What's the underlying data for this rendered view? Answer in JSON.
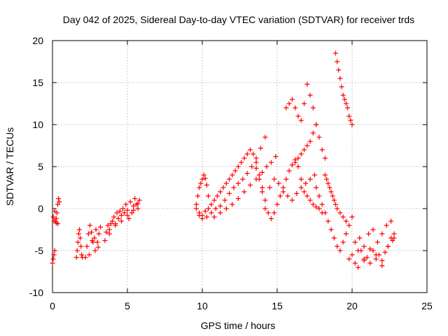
{
  "chart_data": {
    "type": "scatter",
    "title": "Day 042 of 2025, Sidereal Day-to-day VTEC variation (SDTVAR) for receiver trds",
    "xlabel": "GPS time / hours",
    "ylabel": "SDTVAR / TECUs",
    "xlim": [
      0,
      25
    ],
    "ylim": [
      -10,
      20
    ],
    "xticks": [
      0,
      5,
      10,
      15,
      20,
      25
    ],
    "yticks": [
      -10,
      -5,
      0,
      5,
      10,
      15,
      20
    ],
    "grid": true,
    "marker": "plus",
    "color": "#ff0000",
    "series": [
      {
        "name": "SDTVAR",
        "x": [
          0.0,
          0.05,
          0.1,
          0.15,
          0.2,
          0.25,
          0.3,
          0.35,
          0.4,
          0.45,
          0.05,
          0.1,
          0.15,
          0.25,
          0.35,
          1.6,
          1.65,
          1.7,
          1.75,
          1.8,
          1.85,
          1.9,
          1.95,
          2.0,
          2.2,
          2.3,
          2.4,
          2.5,
          2.6,
          2.7,
          2.8,
          2.9,
          3.0,
          3.1,
          3.2,
          2.45,
          2.65,
          2.85,
          3.05,
          3.5,
          3.6,
          3.7,
          3.8,
          3.9,
          4.0,
          4.1,
          4.2,
          4.3,
          4.4,
          4.5,
          4.6,
          4.7,
          4.8,
          4.9,
          5.0,
          5.1,
          5.2,
          5.3,
          5.4,
          5.5,
          5.6,
          5.7,
          5.8,
          3.8,
          4.2,
          4.6,
          5.0,
          5.4,
          5.7,
          9.6,
          9.7,
          9.8,
          9.9,
          10.0,
          10.1,
          10.2,
          10.3,
          10.4,
          9.6,
          9.8,
          10.0,
          10.2,
          10.4,
          10.6,
          10.8,
          11.0,
          11.2,
          11.4,
          11.6,
          11.8,
          12.0,
          12.2,
          12.4,
          12.6,
          12.8,
          13.0,
          13.2,
          13.4,
          13.6,
          13.8,
          14.0,
          14.2,
          9.8,
          10.0,
          10.3,
          10.6,
          10.9,
          11.2,
          11.5,
          11.8,
          12.1,
          12.4,
          12.7,
          13.0,
          13.3,
          13.6,
          13.9,
          14.2,
          10.8,
          11.2,
          11.6,
          12.0,
          12.4,
          12.8,
          13.2,
          13.6,
          14.0,
          14.3,
          14.6,
          14.9,
          13.6,
          13.8,
          14.0,
          14.2,
          14.4,
          14.6,
          14.8,
          15.0,
          15.2,
          15.4,
          15.6,
          15.8,
          16.0,
          16.2,
          16.4,
          16.6,
          16.8,
          17.0,
          17.2,
          17.4,
          17.6,
          17.8,
          18.0,
          14.5,
          14.8,
          15.1,
          15.4,
          15.7,
          16.0,
          16.3,
          16.6,
          16.9,
          17.2,
          17.5,
          15.6,
          15.8,
          16.0,
          16.2,
          16.4,
          16.6,
          16.8,
          17.0,
          17.2,
          17.4,
          17.6,
          17.8,
          18.0,
          18.2,
          16.2,
          16.4,
          16.6,
          16.8,
          17.0,
          17.2,
          17.4,
          17.6,
          18.2,
          18.3,
          18.4,
          18.5,
          18.6,
          18.7,
          18.8,
          18.9,
          19.0,
          19.2,
          19.4,
          19.6,
          18.9,
          19.0,
          19.1,
          19.2,
          19.3,
          19.4,
          19.5,
          19.6,
          19.7,
          19.8,
          19.9,
          20.0,
          17.6,
          17.8,
          18.0,
          18.2,
          18.4,
          18.6,
          18.8,
          19.0,
          19.2,
          19.4,
          19.6,
          19.8,
          20.0,
          19.8,
          20.0,
          20.2,
          20.4,
          20.6,
          20.8,
          21.0,
          21.2,
          21.4,
          21.6,
          21.8,
          22.0,
          22.2,
          22.4,
          22.6,
          22.8,
          20.2,
          20.5,
          20.8,
          21.1,
          21.4,
          21.7,
          22.0,
          22.3,
          22.6,
          22.8,
          20.4,
          20.8,
          21.2,
          21.6,
          22.0,
          22.4,
          22.7
        ],
        "y": [
          -6.5,
          -6.0,
          -5.5,
          -5.0,
          -1.5,
          -1.2,
          -0.5,
          0.5,
          1.2,
          0.8,
          -1.0,
          -1.5,
          -0.3,
          -1.7,
          -1.8,
          -5.8,
          -5.0,
          -4.0,
          -3.0,
          -2.5,
          -3.5,
          -4.5,
          -5.5,
          -5.8,
          -5.8,
          -4.5,
          -3.0,
          -2.0,
          -2.8,
          -4.0,
          -3.5,
          -2.5,
          -4.0,
          -3.0,
          -2.2,
          -5.5,
          -3.8,
          -5.0,
          -4.6,
          -3.8,
          -2.8,
          -2.0,
          -2.5,
          -1.8,
          -1.5,
          -1.0,
          -1.8,
          -0.5,
          -1.2,
          -0.3,
          -0.8,
          0.0,
          -0.5,
          0.5,
          -0.2,
          -1.2,
          0.8,
          -0.5,
          0.3,
          1.2,
          0.5,
          0.0,
          1.0,
          -3.0,
          -2.0,
          -1.5,
          -0.8,
          -0.2,
          0.6,
          0.5,
          1.5,
          2.5,
          3.0,
          3.5,
          4.0,
          3.6,
          2.8,
          1.5,
          0.0,
          -0.5,
          -0.8,
          -0.3,
          0.0,
          0.5,
          1.0,
          1.5,
          2.0,
          2.5,
          3.0,
          3.5,
          4.0,
          4.5,
          5.0,
          5.5,
          6.0,
          6.5,
          7.0,
          6.5,
          5.5,
          4.0,
          2.0,
          0.0,
          -0.8,
          -1.2,
          -1.0,
          -0.5,
          0.0,
          0.3,
          1.0,
          1.8,
          2.5,
          3.0,
          3.5,
          4.2,
          5.0,
          6.0,
          7.2,
          8.5,
          -1.0,
          -0.5,
          0.0,
          0.5,
          1.2,
          2.0,
          2.8,
          3.5,
          4.3,
          5.0,
          5.5,
          6.2,
          4.8,
          3.5,
          2.5,
          1.0,
          -0.5,
          -1.2,
          -0.5,
          0.5,
          1.5,
          2.5,
          3.5,
          4.5,
          5.2,
          5.8,
          5.0,
          3.5,
          2.0,
          1.5,
          1.0,
          0.5,
          0.2,
          0.0,
          -0.5,
          2.5,
          3.5,
          3.0,
          2.0,
          1.5,
          1.0,
          1.8,
          2.5,
          3.0,
          3.5,
          4.0,
          12.0,
          12.5,
          13.0,
          12.0,
          11.0,
          10.5,
          12.5,
          14.8,
          13.5,
          12.0,
          10.0,
          8.5,
          7.0,
          6.0,
          5.5,
          6.0,
          6.5,
          7.0,
          7.5,
          8.0,
          9.0,
          10.0,
          4.0,
          3.5,
          3.0,
          2.5,
          2.0,
          1.5,
          1.0,
          0.5,
          0.0,
          -0.5,
          -1.0,
          -1.5,
          18.5,
          17.5,
          16.5,
          15.5,
          14.5,
          13.5,
          13.0,
          12.5,
          12.0,
          11.0,
          10.5,
          10.0,
          2.5,
          1.5,
          0.5,
          -0.5,
          -1.5,
          -2.5,
          -3.5,
          -4.5,
          -5.0,
          -4.0,
          -3.0,
          -2.0,
          -1.0,
          -6.0,
          -5.5,
          -6.5,
          -7.0,
          -5.0,
          -6.2,
          -5.8,
          -6.5,
          -5.0,
          -6.0,
          -5.5,
          -6.8,
          -5.2,
          -4.5,
          -3.5,
          -3.0,
          -4.0,
          -3.5,
          -4.5,
          -3.0,
          -2.5,
          -4.0,
          -3.0,
          -2.0,
          -1.5,
          -3.5,
          -5.0,
          -6.0,
          -4.8,
          -5.5,
          -6.2,
          -4.5,
          -3.8
        ]
      }
    ]
  }
}
